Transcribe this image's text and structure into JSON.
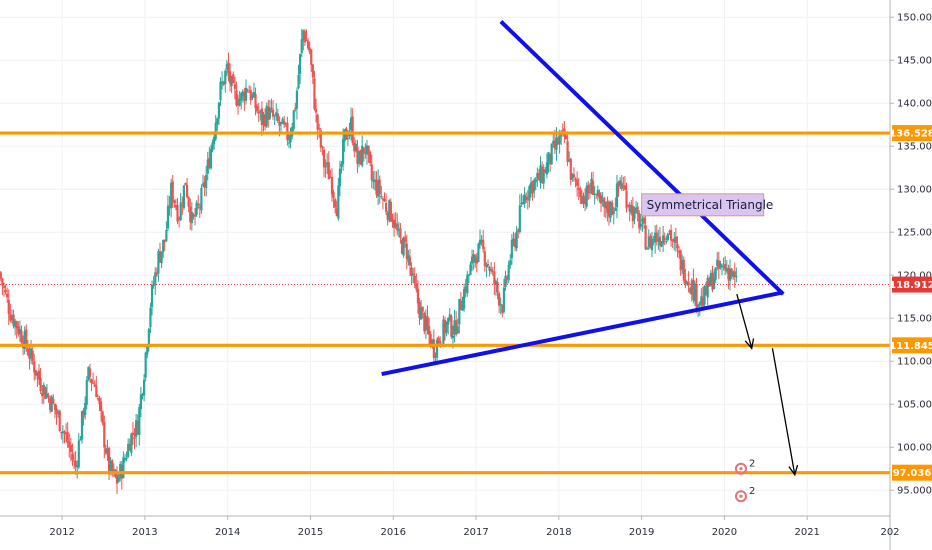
{
  "chart_data": {
    "type": "candlestick",
    "x_ticks": [
      "2012",
      "2013",
      "2014",
      "2015",
      "2016",
      "2017",
      "2018",
      "2019",
      "2020",
      "2021",
      "202"
    ],
    "y_ticks": [
      "95.000",
      "100.000",
      "105.000",
      "110.000",
      "115.000",
      "120.000",
      "125.000",
      "130.000",
      "135.000",
      "140.000",
      "145.000",
      "150.000"
    ],
    "xlim": [
      2011.25,
      2022.0
    ],
    "ylim": [
      92.0,
      152.0
    ],
    "grid": true,
    "current_price": {
      "label": "118.912",
      "value": 118.912,
      "color": "#e53935"
    },
    "horizontal_levels": [
      {
        "label": "136.528",
        "value": 136.528,
        "color": "#ff9800"
      },
      {
        "label": "111.845",
        "value": 111.845,
        "color": "#ff9800"
      },
      {
        "label": "97.036",
        "value": 97.036,
        "color": "#ff9800"
      }
    ],
    "trendlines": [
      {
        "name": "upper",
        "start": [
          2017.3,
          149.5
        ],
        "end": [
          2020.71,
          117.8
        ],
        "color": "#1010ee"
      },
      {
        "name": "lower",
        "start": [
          2015.86,
          108.5
        ],
        "end": [
          2020.71,
          118.0
        ],
        "color": "#1010ee"
      }
    ],
    "arrows": [
      {
        "start": [
          2020.15,
          117.8
        ],
        "end": [
          2020.33,
          111.5
        ],
        "color": "#000000"
      },
      {
        "start": [
          2020.58,
          111.5
        ],
        "end": [
          2020.85,
          96.8
        ],
        "color": "#000000"
      }
    ],
    "annotation": {
      "text": "Symmetrical Triangle",
      "x": 2019.0,
      "y": 128.3,
      "bg": "#d9c6f0",
      "border": "#e8956b"
    },
    "event_markers": [
      {
        "label": "2",
        "x": 2020.2,
        "y": 97.5
      },
      {
        "label": "2",
        "x": 2020.2,
        "y": 94.3
      }
    ],
    "colors": {
      "up": "#26a69a",
      "down": "#ef5350",
      "grid": "#eef1f5"
    },
    "price_path": [
      [
        2011.25,
        120.3
      ],
      [
        2011.38,
        115.8
      ],
      [
        2011.55,
        112.5
      ],
      [
        2011.75,
        107.5
      ],
      [
        2011.92,
        104.5
      ],
      [
        2012.08,
        100.5
      ],
      [
        2012.17,
        97.5
      ],
      [
        2012.25,
        103.0
      ],
      [
        2012.33,
        108.5
      ],
      [
        2012.42,
        107.0
      ],
      [
        2012.5,
        102.0
      ],
      [
        2012.58,
        97.5
      ],
      [
        2012.67,
        96.0
      ],
      [
        2012.75,
        98.0
      ],
      [
        2012.83,
        101.0
      ],
      [
        2012.92,
        102.5
      ],
      [
        2013.0,
        109.0
      ],
      [
        2013.08,
        117.0
      ],
      [
        2013.17,
        122.0
      ],
      [
        2013.25,
        124.0
      ],
      [
        2013.33,
        130.0
      ],
      [
        2013.42,
        127.0
      ],
      [
        2013.5,
        131.0
      ],
      [
        2013.58,
        126.0
      ],
      [
        2013.67,
        128.0
      ],
      [
        2013.75,
        131.5
      ],
      [
        2013.83,
        136.0
      ],
      [
        2013.92,
        141.5
      ],
      [
        2014.0,
        144.0
      ],
      [
        2014.08,
        141.0
      ],
      [
        2014.17,
        140.5
      ],
      [
        2014.25,
        142.0
      ],
      [
        2014.33,
        140.0
      ],
      [
        2014.42,
        138.0
      ],
      [
        2014.5,
        139.0
      ],
      [
        2014.58,
        138.0
      ],
      [
        2014.67,
        137.0
      ],
      [
        2014.75,
        136.0
      ],
      [
        2014.83,
        140.0
      ],
      [
        2014.92,
        148.5
      ],
      [
        2015.0,
        146.0
      ],
      [
        2015.08,
        138.0
      ],
      [
        2015.17,
        133.0
      ],
      [
        2015.25,
        131.5
      ],
      [
        2015.33,
        128.0
      ],
      [
        2015.42,
        136.0
      ],
      [
        2015.5,
        137.5
      ],
      [
        2015.58,
        133.0
      ],
      [
        2015.67,
        135.0
      ],
      [
        2015.75,
        131.0
      ],
      [
        2015.83,
        130.0
      ],
      [
        2015.92,
        128.0
      ],
      [
        2016.0,
        127.0
      ],
      [
        2016.08,
        124.0
      ],
      [
        2016.17,
        123.0
      ],
      [
        2016.25,
        119.0
      ],
      [
        2016.33,
        116.0
      ],
      [
        2016.42,
        113.5
      ],
      [
        2016.5,
        111.5
      ],
      [
        2016.58,
        113.0
      ],
      [
        2016.67,
        114.5
      ],
      [
        2016.75,
        113.5
      ],
      [
        2016.83,
        117.0
      ],
      [
        2016.92,
        120.0
      ],
      [
        2017.0,
        122.5
      ],
      [
        2017.08,
        123.0
      ],
      [
        2017.17,
        121.0
      ],
      [
        2017.25,
        118.5
      ],
      [
        2017.33,
        116.5
      ],
      [
        2017.42,
        122.0
      ],
      [
        2017.5,
        125.0
      ],
      [
        2017.58,
        129.0
      ],
      [
        2017.67,
        130.5
      ],
      [
        2017.75,
        131.0
      ],
      [
        2017.83,
        132.0
      ],
      [
        2017.92,
        134.0
      ],
      [
        2018.0,
        135.5
      ],
      [
        2018.08,
        136.0
      ],
      [
        2018.17,
        131.0
      ],
      [
        2018.25,
        130.0
      ],
      [
        2018.33,
        129.0
      ],
      [
        2018.42,
        130.5
      ],
      [
        2018.5,
        128.0
      ],
      [
        2018.58,
        127.5
      ],
      [
        2018.67,
        128.0
      ],
      [
        2018.75,
        131.0
      ],
      [
        2018.83,
        129.0
      ],
      [
        2018.92,
        127.0
      ],
      [
        2019.0,
        126.0
      ],
      [
        2019.08,
        123.5
      ],
      [
        2019.17,
        124.5
      ],
      [
        2019.25,
        124.5
      ],
      [
        2019.33,
        125.5
      ],
      [
        2019.42,
        123.0
      ],
      [
        2019.5,
        121.0
      ],
      [
        2019.58,
        119.5
      ],
      [
        2019.67,
        117.5
      ],
      [
        2019.75,
        117.0
      ],
      [
        2019.83,
        119.0
      ],
      [
        2019.92,
        120.5
      ],
      [
        2020.0,
        121.0
      ],
      [
        2020.08,
        120.5
      ],
      [
        2020.15,
        118.9
      ]
    ]
  }
}
